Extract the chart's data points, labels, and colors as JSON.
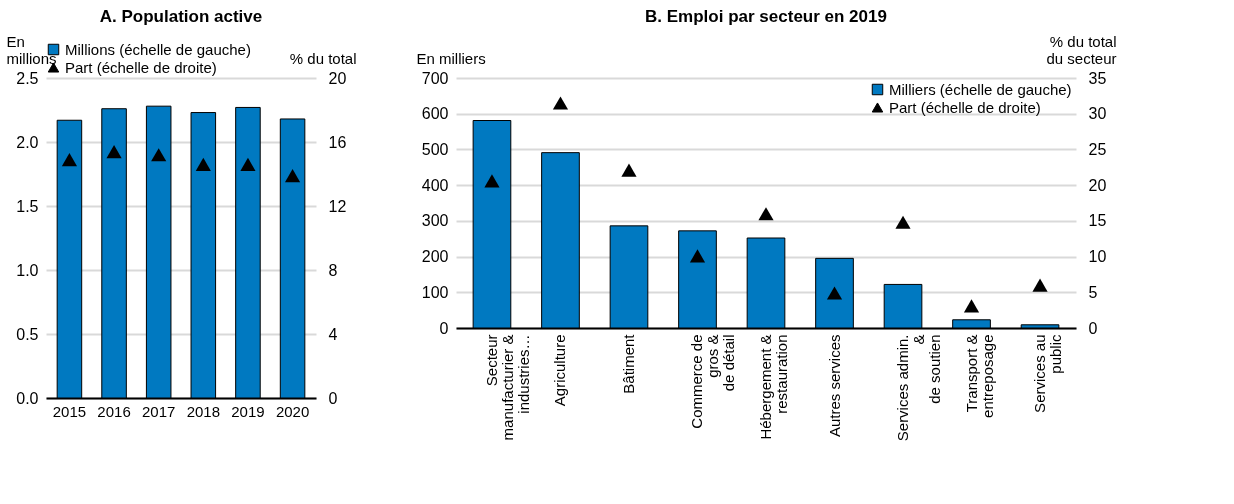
{
  "chart_data": [
    {
      "type": "bar",
      "title": "A. Population active",
      "ylabel": "En\nmillions",
      "y2label": "% du total",
      "categories": [
        "2015",
        "2016",
        "2017",
        "2018",
        "2019",
        "2020"
      ],
      "series": [
        {
          "name": "Millions (échelle de gauche)",
          "color": "#0079c1",
          "values": [
            2.17,
            2.26,
            2.28,
            2.23,
            2.27,
            2.18
          ]
        },
        {
          "name": "Part (échelle de droite)",
          "type": "scatter",
          "axis": "y2",
          "marker": "triangle",
          "color": "#000000",
          "values": [
            14.9,
            15.4,
            15.2,
            14.6,
            14.6,
            13.9
          ]
        }
      ],
      "ylim": [
        0,
        2.5
      ],
      "yticks": [
        {
          "value": 0,
          "label": "0.0"
        },
        {
          "value": 0.5,
          "label": "0.5"
        },
        {
          "value": 1,
          "label": "1.0"
        },
        {
          "value": 1.5,
          "label": "1.5"
        },
        {
          "value": 2,
          "label": "2.0"
        },
        {
          "value": 2.5,
          "label": "2.5"
        }
      ],
      "y2lim": [
        0,
        20
      ],
      "y2ticks": [
        0,
        4,
        8,
        12,
        16,
        20
      ],
      "grid": "y",
      "legend": "top"
    },
    {
      "type": "bar",
      "title": "B. Emploi par secteur en 2019",
      "ylabel": "En milliers",
      "y2label": "% du total\ndu secteur",
      "categories": [
        "Secteur\nmanufacturier &\nindustries…",
        "Agriculture",
        "Bâtiment",
        "Commerce de\ngros &\nde détail",
        "Hébergement &\nrestauration",
        "Autres services",
        "Services admin.\n&\nde soutien",
        "Transport &\nentreposage",
        "Services au\npublic"
      ],
      "series": [
        {
          "name": "Milliers (échelle de gauche)",
          "color": "#0079c1",
          "values": [
            581,
            491,
            286,
            272,
            252,
            195,
            122,
            23,
            9
          ]
        },
        {
          "name": "Part (échelle de droite)",
          "type": "scatter",
          "axis": "y2",
          "marker": "triangle",
          "color": "#000000",
          "values": [
            20.6,
            31.5,
            22.1,
            10.1,
            16.0,
            4.9,
            14.8,
            3.1,
            6.0
          ]
        }
      ],
      "ylim": [
        0,
        700
      ],
      "yticks": [
        0,
        100,
        200,
        300,
        400,
        500,
        600,
        700
      ],
      "y2lim": [
        0,
        35
      ],
      "y2ticks": [
        0,
        5,
        10,
        15,
        20,
        25,
        30,
        35
      ],
      "grid": "y",
      "legend": "top right"
    }
  ]
}
